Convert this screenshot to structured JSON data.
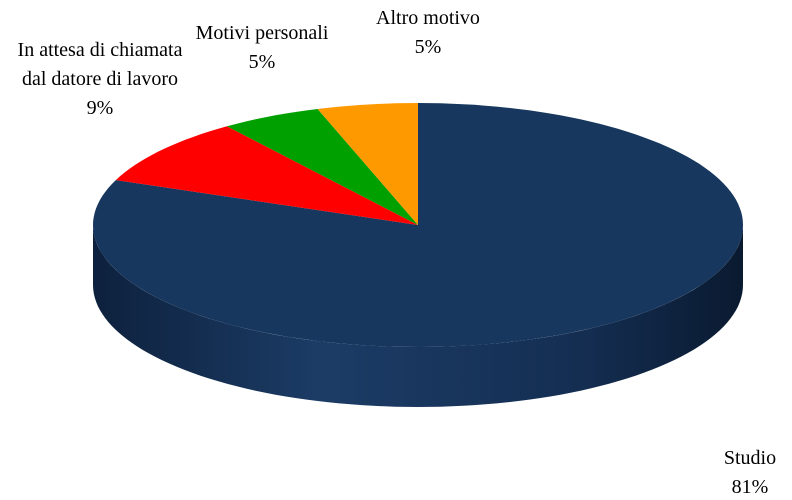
{
  "chart_data": {
    "type": "pie",
    "categories": [
      "Studio",
      "In attesa di chiamata dal datore di lavoro",
      "Motivi personali",
      "Altro motivo"
    ],
    "values": [
      81,
      9,
      5,
      5
    ],
    "value_labels": [
      "81%",
      "9%",
      "5%",
      "5%"
    ],
    "colors": [
      "#17375e",
      "#ff0000",
      "#00a000",
      "#ff9900"
    ]
  }
}
